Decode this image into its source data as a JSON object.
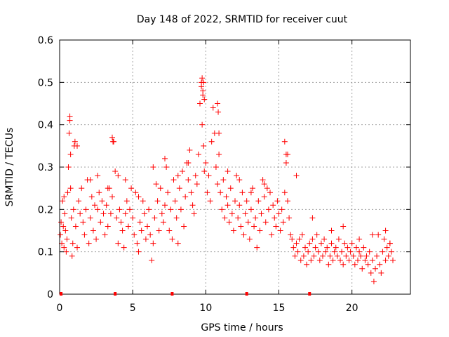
{
  "chart_data": {
    "type": "scatter",
    "title": "Day 148 of 2022, SRMTID for receiver cuut",
    "xlabel": "GPS time / hours",
    "ylabel": "SRMTID / TECUs",
    "xlim": [
      0,
      24
    ],
    "ylim": [
      0,
      0.6
    ],
    "xticks": [
      0,
      5,
      10,
      15,
      20
    ],
    "yticks": [
      0,
      0.1,
      0.2,
      0.3,
      0.4,
      0.5,
      0.6
    ],
    "grid": true,
    "marker": "+",
    "color": "#ff0000",
    "series": [
      {
        "name": "SRMTID",
        "x": [
          0.05,
          0.1,
          0.15,
          0.2,
          0.25,
          0.3,
          0.35,
          0.4,
          0.45,
          0.5,
          0.55,
          0.6,
          0.65,
          0.7,
          0.75,
          0.8,
          0.85,
          0.9,
          0.95,
          1.0,
          1.1,
          1.2,
          1.3,
          1.4,
          1.5,
          1.6,
          1.7,
          1.8,
          1.9,
          2.0,
          2.1,
          2.2,
          2.3,
          2.4,
          2.5,
          2.6,
          2.7,
          2.8,
          2.9,
          3.0,
          3.1,
          3.2,
          3.3,
          3.4,
          3.5,
          3.6,
          3.7,
          3.8,
          3.9,
          4.0,
          4.1,
          4.2,
          4.3,
          4.4,
          4.5,
          4.6,
          4.7,
          4.8,
          4.9,
          5.0,
          5.1,
          5.2,
          5.3,
          5.4,
          5.5,
          5.6,
          5.7,
          5.8,
          5.9,
          6.0,
          6.1,
          6.2,
          6.3,
          6.4,
          6.5,
          6.6,
          6.7,
          6.8,
          6.9,
          7.0,
          7.1,
          7.2,
          7.3,
          7.4,
          7.5,
          7.6,
          7.7,
          7.8,
          7.9,
          8.0,
          8.1,
          8.2,
          8.3,
          8.4,
          8.5,
          8.6,
          8.7,
          8.8,
          8.9,
          9.0,
          9.1,
          9.2,
          9.3,
          9.4,
          9.5,
          9.6,
          9.7,
          9.75,
          9.8,
          9.85,
          9.9,
          10.0,
          10.1,
          10.2,
          10.3,
          10.4,
          10.5,
          10.6,
          10.7,
          10.8,
          10.9,
          11.0,
          11.1,
          11.2,
          11.3,
          11.4,
          11.5,
          11.6,
          11.7,
          11.8,
          11.9,
          12.0,
          12.1,
          12.2,
          12.3,
          12.4,
          12.5,
          12.6,
          12.7,
          12.8,
          12.9,
          13.0,
          13.1,
          13.2,
          13.3,
          13.4,
          13.5,
          13.6,
          13.7,
          13.8,
          13.9,
          14.0,
          14.1,
          14.2,
          14.3,
          14.4,
          14.5,
          14.6,
          14.7,
          14.8,
          14.9,
          15.0,
          15.1,
          15.2,
          15.3,
          15.4,
          15.5,
          15.6,
          15.7,
          15.8,
          15.9,
          16.0,
          16.1,
          16.2,
          16.3,
          16.4,
          16.5,
          16.6,
          16.7,
          16.8,
          16.9,
          17.0,
          17.1,
          17.2,
          17.3,
          17.4,
          17.5,
          17.6,
          17.7,
          17.8,
          17.9,
          18.0,
          18.1,
          18.2,
          18.3,
          18.4,
          18.5,
          18.6,
          18.7,
          18.8,
          18.9,
          19.0,
          19.1,
          19.2,
          19.3,
          19.4,
          19.5,
          19.6,
          19.7,
          19.8,
          19.9,
          20.0,
          20.1,
          20.2,
          20.3,
          20.4,
          20.5,
          20.6,
          20.7,
          20.8,
          20.9,
          21.0,
          21.1,
          21.2,
          21.3,
          21.4,
          21.5,
          21.6,
          21.7,
          21.8,
          21.9,
          22.0,
          22.1,
          22.2,
          22.3,
          22.4,
          22.5,
          22.6,
          22.7,
          22.8,
          0.3,
          0.7,
          0.75,
          1.05,
          1.2,
          3.6,
          3.65,
          4.0,
          9.7,
          9.75,
          9.8,
          9.85,
          9.9,
          10.8,
          10.85,
          10.9,
          15.4,
          15.5,
          15.6,
          16.2,
          2.1,
          2.6,
          3.3,
          4.5,
          5.4,
          6.4,
          7.2,
          8.1,
          8.8,
          11.5,
          12.3,
          13.1,
          14.0,
          17.3,
          18.6,
          19.4,
          20.5,
          21.4,
          22.3,
          22.6
        ],
        "y": [
          0.14,
          0.17,
          0.12,
          0.22,
          0.16,
          0.11,
          0.19,
          0.15,
          0.1,
          0.13,
          0.24,
          0.3,
          0.38,
          0.42,
          0.25,
          0.18,
          0.09,
          0.12,
          0.2,
          0.35,
          0.16,
          0.11,
          0.22,
          0.19,
          0.25,
          0.17,
          0.14,
          0.2,
          0.27,
          0.12,
          0.18,
          0.23,
          0.15,
          0.21,
          0.13,
          0.2,
          0.24,
          0.17,
          0.22,
          0.19,
          0.14,
          0.21,
          0.16,
          0.25,
          0.19,
          0.23,
          0.36,
          0.29,
          0.18,
          0.12,
          0.2,
          0.17,
          0.15,
          0.11,
          0.19,
          0.22,
          0.16,
          0.2,
          0.25,
          0.18,
          0.14,
          0.24,
          0.12,
          0.1,
          0.17,
          0.15,
          0.22,
          0.19,
          0.13,
          0.16,
          0.2,
          0.14,
          0.08,
          0.12,
          0.18,
          0.26,
          0.22,
          0.15,
          0.25,
          0.19,
          0.17,
          0.21,
          0.3,
          0.24,
          0.15,
          0.2,
          0.13,
          0.27,
          0.22,
          0.18,
          0.12,
          0.25,
          0.2,
          0.29,
          0.16,
          0.23,
          0.31,
          0.27,
          0.34,
          0.24,
          0.21,
          0.19,
          0.28,
          0.26,
          0.33,
          0.45,
          0.5,
          0.4,
          0.48,
          0.35,
          0.29,
          0.31,
          0.24,
          0.28,
          0.22,
          0.36,
          0.44,
          0.38,
          0.3,
          0.26,
          0.33,
          0.24,
          0.2,
          0.27,
          0.18,
          0.23,
          0.21,
          0.17,
          0.25,
          0.19,
          0.15,
          0.22,
          0.28,
          0.18,
          0.21,
          0.16,
          0.24,
          0.14,
          0.19,
          0.22,
          0.17,
          0.13,
          0.2,
          0.25,
          0.16,
          0.18,
          0.11,
          0.22,
          0.15,
          0.19,
          0.27,
          0.23,
          0.17,
          0.25,
          0.2,
          0.24,
          0.14,
          0.21,
          0.18,
          0.16,
          0.22,
          0.19,
          0.15,
          0.2,
          0.17,
          0.24,
          0.31,
          0.22,
          0.18,
          0.14,
          0.13,
          0.11,
          0.09,
          0.12,
          0.1,
          0.13,
          0.08,
          0.14,
          0.09,
          0.11,
          0.07,
          0.1,
          0.12,
          0.08,
          0.13,
          0.09,
          0.11,
          0.14,
          0.1,
          0.08,
          0.12,
          0.09,
          0.13,
          0.1,
          0.11,
          0.07,
          0.09,
          0.12,
          0.08,
          0.1,
          0.11,
          0.09,
          0.13,
          0.08,
          0.1,
          0.07,
          0.12,
          0.09,
          0.11,
          0.08,
          0.1,
          0.12,
          0.09,
          0.07,
          0.11,
          0.08,
          0.1,
          0.09,
          0.06,
          0.11,
          0.08,
          0.09,
          0.07,
          0.1,
          0.05,
          0.08,
          0.03,
          0.06,
          0.09,
          0.14,
          0.07,
          0.05,
          0.1,
          0.13,
          0.08,
          0.11,
          0.09,
          0.12,
          0.1,
          0.08,
          0.23,
          0.41,
          0.33,
          0.36,
          0.35,
          0.37,
          0.36,
          0.28,
          0.49,
          0.51,
          0.47,
          0.5,
          0.46,
          0.45,
          0.43,
          0.38,
          0.36,
          0.33,
          0.33,
          0.28,
          0.27,
          0.28,
          0.25,
          0.27,
          0.23,
          0.3,
          0.32,
          0.28,
          0.31,
          0.29,
          0.27,
          0.24,
          0.26,
          0.18,
          0.15,
          0.16,
          0.13,
          0.14,
          0.15,
          0.12
        ]
      }
    ],
    "x_axis_markers": [
      0.1,
      3.8,
      7.7,
      12.8,
      17.1
    ]
  }
}
